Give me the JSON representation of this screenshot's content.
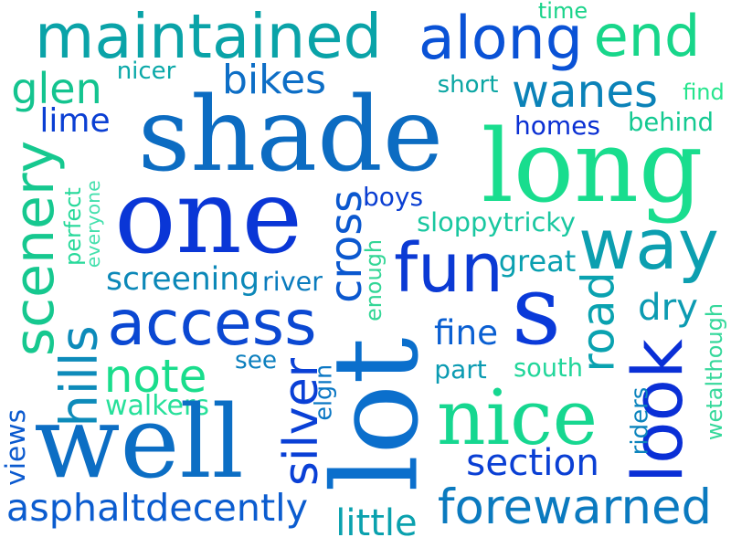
{
  "words": [
    {
      "text": "maintained",
      "color": "#0aa3a8"
    },
    {
      "text": "along",
      "color": "#0a52d6"
    },
    {
      "text": "end",
      "color": "#18d68a"
    },
    {
      "text": "time",
      "color": "#1ad38a"
    },
    {
      "text": "nicer",
      "color": "#0aa8a8"
    },
    {
      "text": "bikes",
      "color": "#0d6ec6"
    },
    {
      "text": "glen",
      "color": "#14c48f"
    },
    {
      "text": "short",
      "color": "#0ba6a3"
    },
    {
      "text": "wanes",
      "color": "#0b82b8"
    },
    {
      "text": "find",
      "color": "#26e58d"
    },
    {
      "text": "lime",
      "color": "#0b3fd3"
    },
    {
      "text": "shade",
      "color": "#0c6cc2"
    },
    {
      "text": "homes",
      "color": "#0a2fd3"
    },
    {
      "text": "behind",
      "color": "#13c991"
    },
    {
      "text": "long",
      "color": "#19dd8e"
    },
    {
      "text": "scenery",
      "color": "#16c88f"
    },
    {
      "text": "perfect",
      "color": "#27d99a"
    },
    {
      "text": "everyone",
      "color": "#44e0ad"
    },
    {
      "text": "one",
      "color": "#0a36d6"
    },
    {
      "text": "boys",
      "color": "#0a3ed2"
    },
    {
      "text": "cross",
      "color": "#0b58cf"
    },
    {
      "text": "sloppytricky",
      "color": "#19c7a0"
    },
    {
      "text": "way",
      "color": "#0c9fb0"
    },
    {
      "text": "fun",
      "color": "#0b3ad4"
    },
    {
      "text": "great",
      "color": "#0aa0b0"
    },
    {
      "text": "screening",
      "color": "#0c88b8"
    },
    {
      "text": "river",
      "color": "#0b7cbe"
    },
    {
      "text": "enough",
      "color": "#33d696"
    },
    {
      "text": "s",
      "color": "#0a3ad9"
    },
    {
      "text": "road",
      "color": "#0aa2b0"
    },
    {
      "text": "dry",
      "color": "#0c9bb2"
    },
    {
      "text": "access",
      "color": "#0b48d2"
    },
    {
      "text": "hills",
      "color": "#0d8bba"
    },
    {
      "text": "wetalthough",
      "color": "#35d89b"
    },
    {
      "text": "fine",
      "color": "#0a5fd2"
    },
    {
      "text": "note",
      "color": "#19dd8c"
    },
    {
      "text": "see",
      "color": "#0c7fbe"
    },
    {
      "text": "lot",
      "color": "#0b6fcc"
    },
    {
      "text": "part",
      "color": "#0b9bb2"
    },
    {
      "text": "south",
      "color": "#21d69a"
    },
    {
      "text": "look",
      "color": "#0a2fd6"
    },
    {
      "text": "elgin",
      "color": "#0a77c4"
    },
    {
      "text": "silver",
      "color": "#0a40d6"
    },
    {
      "text": "riders",
      "color": "#0c84bd"
    },
    {
      "text": "walkers",
      "color": "#27e09a"
    },
    {
      "text": "nice",
      "color": "#16d790"
    },
    {
      "text": "views",
      "color": "#0b5acf"
    },
    {
      "text": "well",
      "color": "#0c6ec4"
    },
    {
      "text": "section",
      "color": "#0a3fd4"
    },
    {
      "text": "asphaltdecently",
      "color": "#0b5ccf"
    },
    {
      "text": "little",
      "color": "#0aa1ae"
    },
    {
      "text": "forewarned",
      "color": "#0b7abf"
    }
  ]
}
